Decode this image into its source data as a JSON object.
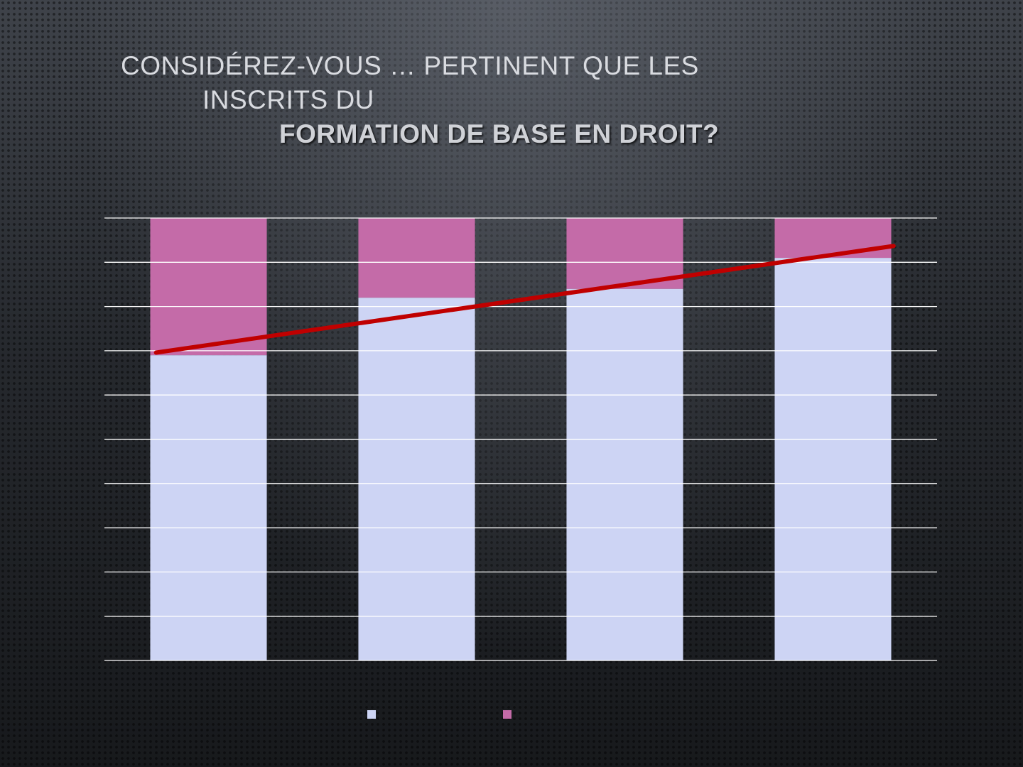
{
  "slide": {
    "title_line1": "CONSIDÉREZ-VOUS … PERTINENT QUE LES",
    "title_line2": "INSCRITS DU",
    "title_line3": "FORMATION DE BASE EN DROIT?"
  },
  "chart_data": {
    "type": "bar",
    "stacked": true,
    "percent_stacked": true,
    "categories": [
      "",
      "",
      "",
      ""
    ],
    "series": [
      {
        "values": [
          69,
          82,
          84,
          91
        ],
        "color": "#cdd4f4"
      },
      {
        "values": [
          31,
          18,
          16,
          9
        ],
        "color": "#c46ba8"
      }
    ],
    "trendline": {
      "type": "linear",
      "series_index": 0,
      "color": "#c00000"
    },
    "ylim": [
      0,
      100
    ],
    "gridlines": 10,
    "grid": true,
    "legend": "bottom-center"
  }
}
